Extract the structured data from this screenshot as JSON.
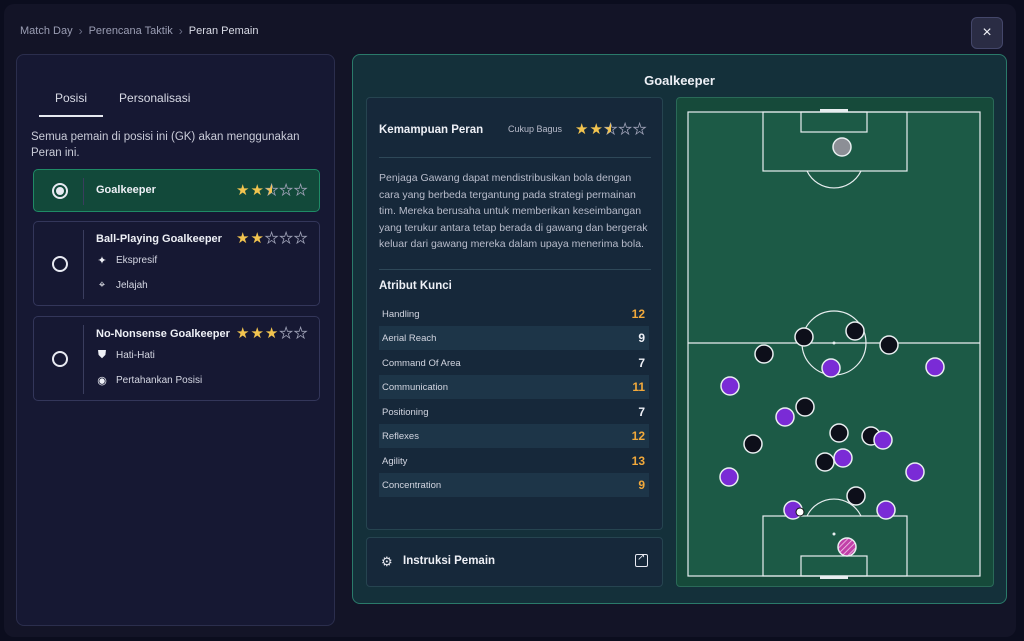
{
  "breadcrumb": [
    "Match Day",
    "Perencana Taktik",
    "Peran Pemain"
  ],
  "close_icon": "×",
  "left": {
    "tabs": [
      "Posisi",
      "Personalisasi"
    ],
    "description": "Semua pemain di posisi ini (GK) akan menggunakan Peran ini.",
    "roles": [
      {
        "name": "Goalkeeper",
        "stars": 2.5,
        "selected": true,
        "traits": []
      },
      {
        "name": "Ball-Playing Goalkeeper",
        "stars": 2,
        "selected": false,
        "traits": [
          {
            "icon": "sparkle-icon",
            "label": "Ekspresif"
          },
          {
            "icon": "crosshair-icon",
            "label": "Jelajah"
          }
        ]
      },
      {
        "name": "No-Nonsense Goalkeeper",
        "stars": 3,
        "selected": false,
        "traits": [
          {
            "icon": "shield-icon",
            "label": "Hati-Hati"
          },
          {
            "icon": "dot-circle-icon",
            "label": "Pertahankan Posisi"
          }
        ]
      }
    ]
  },
  "right": {
    "title": "Goalkeeper",
    "capability_label": "Kemampuan Peran",
    "capability_value": "Cukup Bagus",
    "capability_stars": 2.5,
    "role_description": "Penjaga Gawang dapat mendistribusikan bola dengan cara yang berbeda tergantung pada strategi permainan tim. Mereka berusaha untuk memberikan keseimbangan yang terukur antara tetap berada di gawang dan bergerak keluar dari gawang mereka dalam upaya menerima bola.",
    "attributes_title": "Atribut Kunci",
    "attributes": [
      {
        "name": "Handling",
        "value": "12",
        "highlight": true
      },
      {
        "name": "Aerial Reach",
        "value": "9",
        "highlight": false
      },
      {
        "name": "Command Of Area",
        "value": "7",
        "highlight": false
      },
      {
        "name": "Communication",
        "value": "11",
        "highlight": true
      },
      {
        "name": "Positioning",
        "value": "7",
        "highlight": false
      },
      {
        "name": "Reflexes",
        "value": "12",
        "highlight": true
      },
      {
        "name": "Agility",
        "value": "13",
        "highlight": true
      },
      {
        "name": "Concentration",
        "value": "9",
        "highlight": true
      }
    ],
    "instructions_label": "Instruksi Pemain"
  },
  "colors": {
    "highlight": "#f2a93b",
    "accent": "#1f8a66",
    "team": "#7a2bd6",
    "opponent": "#0d0f1a"
  }
}
